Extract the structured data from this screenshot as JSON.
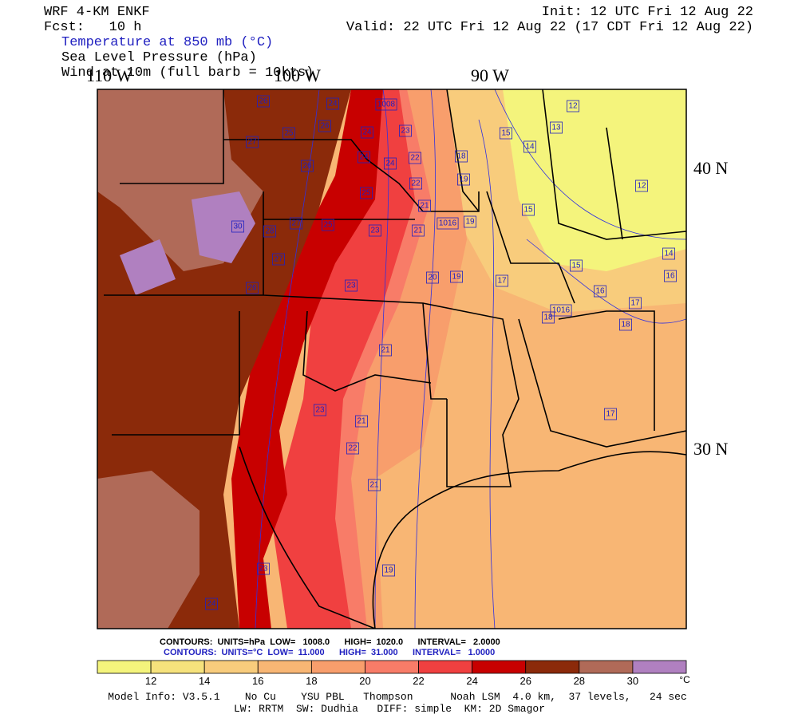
{
  "header": {
    "model": "WRF 4-KM ENKF",
    "forecast": "Fcst:   10 h",
    "init": "Init: 12 UTC Fri 12 Aug 22",
    "valid": "Valid: 22 UTC Fri 12 Aug 22 (17 CDT Fri 12 Aug 22)"
  },
  "fields": [
    "Temperature at 850 mb (°C)",
    "Sea Level Pressure (hPa)",
    "Wind at 10m (full barb = 10kts)"
  ],
  "map": {
    "longitude_labels": [
      "110 W",
      "100 W",
      "90 W"
    ],
    "latitude_labels": [
      "40 N",
      "30 N"
    ],
    "contour_labels": [
      "26",
      "24",
      "1008",
      "26",
      "25",
      "24",
      "23",
      "27",
      "15",
      "13",
      "12",
      "14",
      "26",
      "24",
      "24",
      "22",
      "18",
      "19",
      "25",
      "22",
      "21",
      "12",
      "15",
      "30",
      "28",
      "27",
      "25",
      "23",
      "21",
      "1016",
      "19",
      "27",
      "14",
      "15",
      "20",
      "19",
      "17",
      "16",
      "26",
      "23",
      "16",
      "17",
      "1016",
      "18",
      "18",
      "21",
      "23",
      "21",
      "17",
      "22",
      "21",
      "19",
      "23",
      "24"
    ]
  },
  "contour_info": [
    "CONTOURS:  UNITS=hPa  LOW=   1008.0      HIGH=  1020.0      INTERVAL=   2.0000",
    "CONTOURS:  UNITS=°C  LOW=  11.000      HIGH=  31.000      INTERVAL=   1.0000"
  ],
  "colorbar": {
    "ticks": [
      12,
      14,
      16,
      18,
      20,
      22,
      24,
      26,
      28,
      30
    ],
    "unit": "°C",
    "colors": [
      "#f4f47c",
      "#f6e27c",
      "#f8cc7c",
      "#f8b674",
      "#f89e6c",
      "#f87c68",
      "#f04040",
      "#c80000",
      "#8b2a0a",
      "#b06a58",
      "#b080c0"
    ]
  },
  "footer": [
    "Model Info: V3.5.1    No Cu    YSU PBL   Thompson      Noah LSM  4.0 km,  37 levels,   24 sec",
    "LW: RRTM  SW: Dudhia   DIFF: simple  KM: 2D Smagor"
  ]
}
